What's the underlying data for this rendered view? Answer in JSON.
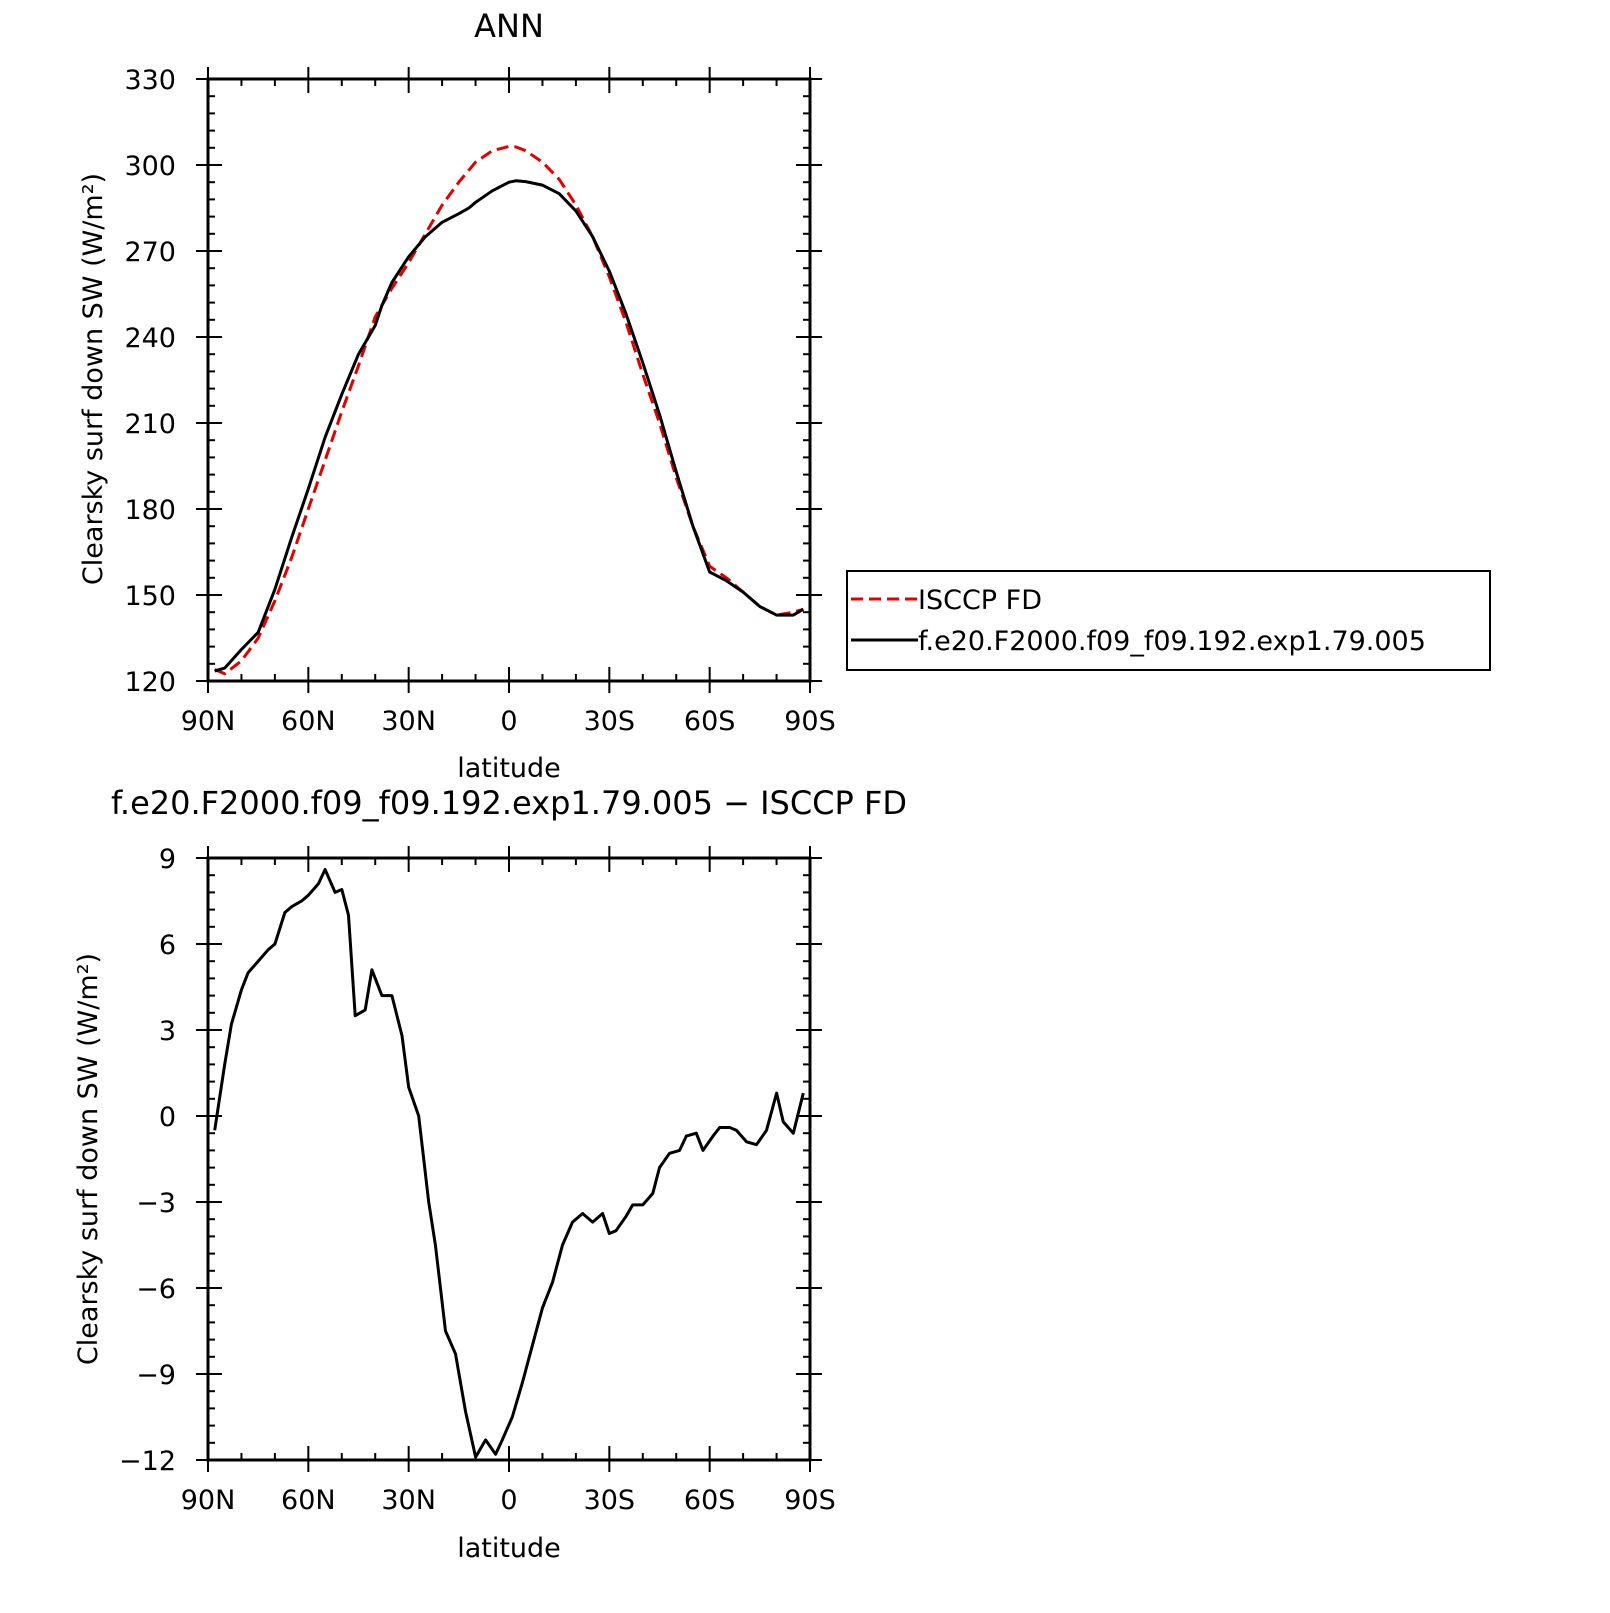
{
  "chart_data": [
    {
      "type": "line",
      "title": "ANN",
      "xlabel": "latitude",
      "ylabel": "Clearsky surf down SW (W/m²)",
      "x_ticks": [
        {
          "value": -90,
          "label": "90N"
        },
        {
          "value": -60,
          "label": "60N"
        },
        {
          "value": -30,
          "label": "30N"
        },
        {
          "value": 0,
          "label": "0"
        },
        {
          "value": 30,
          "label": "30S"
        },
        {
          "value": 60,
          "label": "60S"
        },
        {
          "value": 90,
          "label": "90S"
        }
      ],
      "xlim": [
        -90,
        90
      ],
      "ylim": [
        120,
        330
      ],
      "y_ticks": [
        120,
        150,
        180,
        210,
        240,
        270,
        300,
        330
      ],
      "legend": {
        "placement": "right",
        "items": [
          "ISCCP FD",
          "f.e20.F2000.f09_f09.192.exp1.79.005"
        ]
      },
      "series": [
        {
          "name": "ISCCP FD",
          "color": "#e00000",
          "style": "dashed",
          "x": [
            -88,
            -85,
            -80,
            -75,
            -70,
            -65,
            -60,
            -55,
            -50,
            -45,
            -40,
            -35,
            -30,
            -25,
            -20,
            -15,
            -10,
            -5,
            0,
            2,
            5,
            10,
            15,
            20,
            25,
            30,
            35,
            40,
            45,
            50,
            55,
            60,
            65,
            70,
            75,
            80,
            85,
            88
          ],
          "y": [
            124,
            122.5,
            127,
            135,
            148,
            163,
            180,
            197,
            214,
            230,
            247,
            257,
            266,
            276,
            286,
            294,
            301,
            305,
            306.5,
            306.3,
            305,
            301,
            295,
            286,
            275,
            261,
            245,
            227,
            210,
            191,
            174,
            160,
            156,
            151,
            146,
            143,
            144,
            145
          ]
        },
        {
          "name": "f.e20.F2000.f09_f09.192.exp1.79.005",
          "color": "#000000",
          "style": "solid",
          "x": [
            -88,
            -85,
            -80,
            -75,
            -70,
            -65,
            -60,
            -55,
            -50,
            -45,
            -40,
            -38,
            -35,
            -30,
            -25,
            -20,
            -15,
            -12,
            -10,
            -5,
            0,
            2,
            5,
            10,
            15,
            20,
            25,
            30,
            35,
            40,
            45,
            50,
            55,
            60,
            65,
            70,
            75,
            80,
            85,
            88
          ],
          "y": [
            123.5,
            124.5,
            131,
            137,
            152,
            170,
            187,
            205,
            220,
            234,
            244,
            251,
            259,
            268,
            275,
            280,
            283,
            285,
            287,
            291,
            294,
            294.5,
            294.2,
            293,
            290,
            284,
            275,
            263,
            248,
            231,
            213,
            193,
            174,
            158,
            155,
            151,
            146,
            143,
            143,
            145
          ]
        }
      ]
    },
    {
      "type": "line",
      "title": "f.e20.F2000.f09_f09.192.exp1.79.005 − ISCCP FD",
      "xlabel": "latitude",
      "ylabel": "Clearsky surf down SW (W/m²)",
      "x_ticks": [
        {
          "value": -90,
          "label": "90N"
        },
        {
          "value": -60,
          "label": "60N"
        },
        {
          "value": -30,
          "label": "30N"
        },
        {
          "value": 0,
          "label": "0"
        },
        {
          "value": 30,
          "label": "30S"
        },
        {
          "value": 60,
          "label": "60S"
        },
        {
          "value": 90,
          "label": "90S"
        }
      ],
      "y_ticks": [
        {
          "value": -12,
          "label": "−12"
        },
        {
          "value": -9,
          "label": "−9"
        },
        {
          "value": -6,
          "label": "−6"
        },
        {
          "value": -3,
          "label": "−3"
        },
        {
          "value": 0,
          "label": "0"
        },
        {
          "value": 3,
          "label": "3"
        },
        {
          "value": 6,
          "label": "6"
        },
        {
          "value": 9,
          "label": "9"
        }
      ],
      "xlim": [
        -90,
        90
      ],
      "ylim": [
        -12,
        9
      ],
      "series": [
        {
          "color": "#000000",
          "style": "solid",
          "x": [
            -88,
            -85,
            -83,
            -80,
            -78,
            -75,
            -72,
            -70,
            -67,
            -65,
            -62,
            -60,
            -57,
            -55,
            -52,
            -50,
            -48,
            -46,
            -43,
            -41,
            -38,
            -35,
            -32,
            -30,
            -27,
            -24,
            -22,
            -19,
            -16,
            -13,
            -10,
            -7,
            -4,
            -2,
            1,
            4,
            7,
            10,
            13,
            16,
            19,
            22,
            25,
            28,
            30,
            32,
            35,
            37,
            40,
            43,
            45,
            48,
            51,
            53,
            56,
            58,
            61,
            63,
            66,
            68,
            71,
            74,
            77,
            80,
            82,
            85,
            88
          ],
          "y": [
            -0.5,
            1.8,
            3.2,
            4.4,
            5.0,
            5.4,
            5.8,
            6.0,
            7.1,
            7.3,
            7.5,
            7.7,
            8.1,
            8.6,
            7.8,
            7.9,
            7.0,
            3.5,
            3.7,
            5.1,
            4.2,
            4.2,
            2.8,
            1.0,
            0.0,
            -3.0,
            -4.5,
            -7.5,
            -8.3,
            -10.3,
            -11.9,
            -11.3,
            -11.8,
            -11.3,
            -10.5,
            -9.3,
            -8.0,
            -6.7,
            -5.8,
            -4.5,
            -3.7,
            -3.4,
            -3.7,
            -3.4,
            -4.1,
            -4.0,
            -3.5,
            -3.1,
            -3.1,
            -2.7,
            -1.8,
            -1.3,
            -1.2,
            -0.7,
            -0.6,
            -1.2,
            -0.7,
            -0.4,
            -0.4,
            -0.5,
            -0.9,
            -1.0,
            -0.5,
            0.8,
            -0.2,
            -0.6,
            0.8
          ]
        }
      ]
    }
  ]
}
